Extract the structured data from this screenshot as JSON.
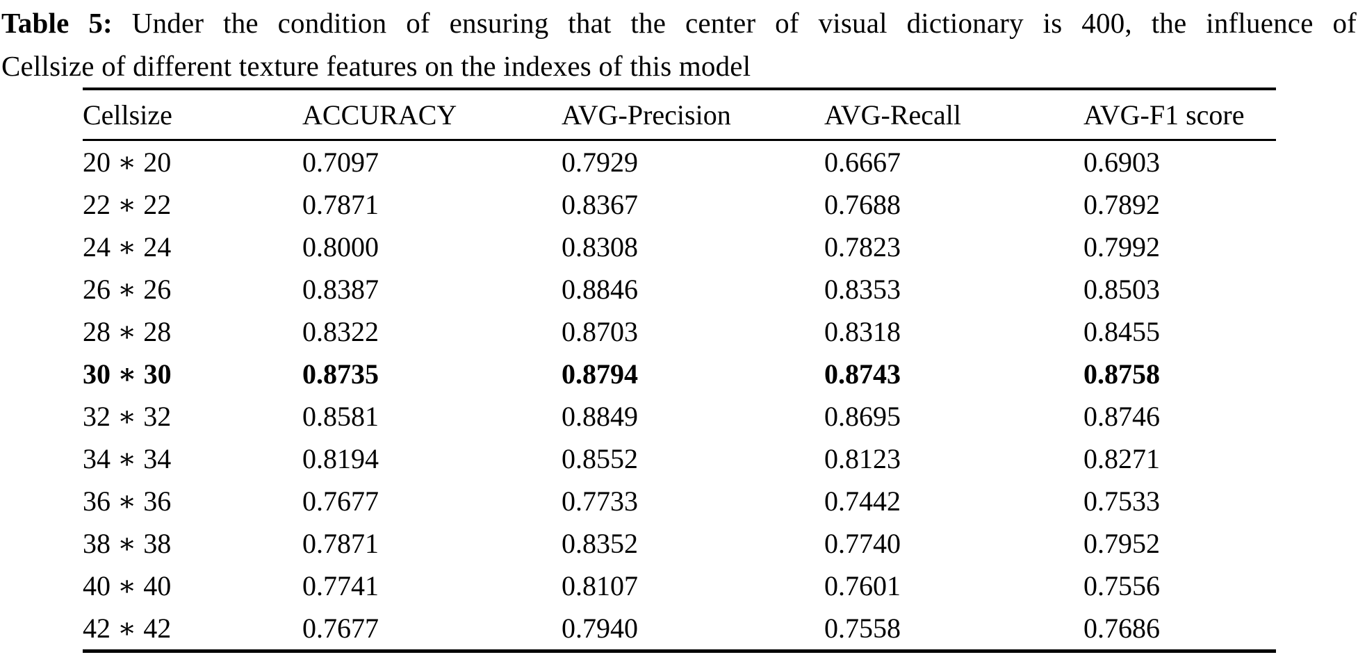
{
  "caption": {
    "label": "Table 5:",
    "text_line1": "Under the condition of ensuring that the center of visual dictionary is 400, the influence of",
    "text_line2": "Cellsize of different texture features on the indexes of this model"
  },
  "table": {
    "columns": [
      "Cellsize",
      "ACCURACY",
      "AVG-Precision",
      "AVG-Recall",
      "AVG-F1 score"
    ],
    "rows": [
      {
        "cellsize": "20 ∗ 20",
        "accuracy": "0.7097",
        "avg_precision": "0.7929",
        "avg_recall": "0.6667",
        "avg_f1": "0.6903",
        "bold": false
      },
      {
        "cellsize": "22 ∗ 22",
        "accuracy": "0.7871",
        "avg_precision": "0.8367",
        "avg_recall": "0.7688",
        "avg_f1": "0.7892",
        "bold": false
      },
      {
        "cellsize": "24 ∗ 24",
        "accuracy": "0.8000",
        "avg_precision": "0.8308",
        "avg_recall": "0.7823",
        "avg_f1": "0.7992",
        "bold": false
      },
      {
        "cellsize": "26 ∗ 26",
        "accuracy": "0.8387",
        "avg_precision": "0.8846",
        "avg_recall": "0.8353",
        "avg_f1": "0.8503",
        "bold": false
      },
      {
        "cellsize": "28 ∗ 28",
        "accuracy": "0.8322",
        "avg_precision": "0.8703",
        "avg_recall": "0.8318",
        "avg_f1": "0.8455",
        "bold": false
      },
      {
        "cellsize": "30 ∗ 30",
        "accuracy": "0.8735",
        "avg_precision": "0.8794",
        "avg_recall": "0.8743",
        "avg_f1": "0.8758",
        "bold": true
      },
      {
        "cellsize": "32 ∗ 32",
        "accuracy": "0.8581",
        "avg_precision": "0.8849",
        "avg_recall": "0.8695",
        "avg_f1": "0.8746",
        "bold": false
      },
      {
        "cellsize": "34 ∗ 34",
        "accuracy": "0.8194",
        "avg_precision": "0.8552",
        "avg_recall": "0.8123",
        "avg_f1": "0.8271",
        "bold": false
      },
      {
        "cellsize": "36 ∗ 36",
        "accuracy": "0.7677",
        "avg_precision": "0.7733",
        "avg_recall": "0.7442",
        "avg_f1": "0.7533",
        "bold": false
      },
      {
        "cellsize": "38 ∗ 38",
        "accuracy": "0.7871",
        "avg_precision": "0.8352",
        "avg_recall": "0.7740",
        "avg_f1": "0.7952",
        "bold": false
      },
      {
        "cellsize": "40 ∗ 40",
        "accuracy": "0.7741",
        "avg_precision": "0.8107",
        "avg_recall": "0.7601",
        "avg_f1": "0.7556",
        "bold": false
      },
      {
        "cellsize": "42 ∗ 42",
        "accuracy": "0.7677",
        "avg_precision": "0.7940",
        "avg_recall": "0.7558",
        "avg_f1": "0.7686",
        "bold": false
      }
    ]
  },
  "colors": {
    "text": "#000000",
    "background": "#ffffff",
    "rule": "#000000"
  }
}
